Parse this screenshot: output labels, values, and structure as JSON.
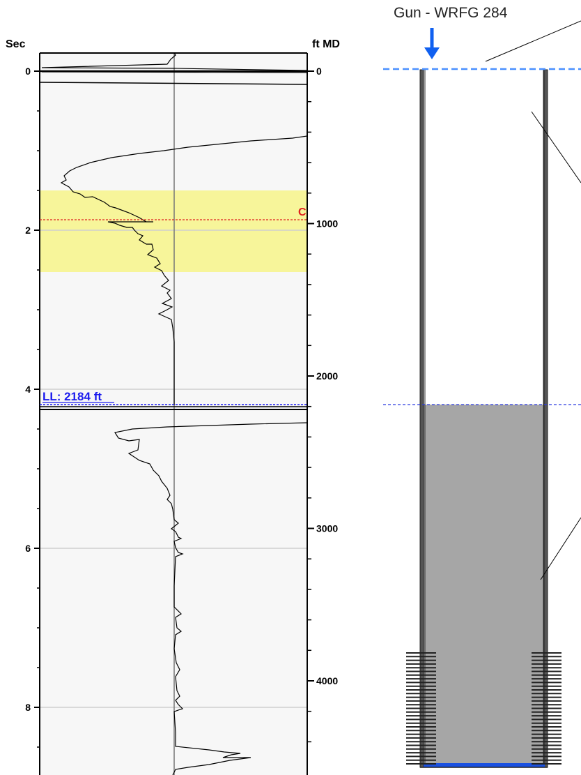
{
  "log": {
    "left_axis_title": "Sec",
    "right_axis_title": "ft MD",
    "sec_ticks": [
      "0",
      "2",
      "4",
      "6",
      "8"
    ],
    "depth_ticks": [
      "0",
      "1000",
      "2000",
      "3000",
      "4000"
    ],
    "sec_range": [
      0,
      8.6
    ],
    "depth_range": [
      0,
      4470
    ],
    "marker": {
      "label": "C",
      "sec": 1.88,
      "color": "#e02020"
    },
    "highlight_sec": [
      1.5,
      2.52
    ],
    "highlight_color": "#f7f59a",
    "liquid_level": {
      "label": "LL: 2184 ft",
      "sec": 4.2,
      "color": "#1a1aee"
    }
  },
  "well": {
    "gun_label": "Gun - WRFG 284",
    "gun_arrow_color": "#1060f0",
    "fluid_color": "#a6a6a6",
    "surface_line_color": "#4a90ff",
    "liquid_line_color": "#2a3ae0",
    "bottom_color": "#1a50e0"
  },
  "colors": {
    "plot_bg": "#f7f7f7",
    "grid": "#cfcfcf",
    "trace": "#000000"
  }
}
